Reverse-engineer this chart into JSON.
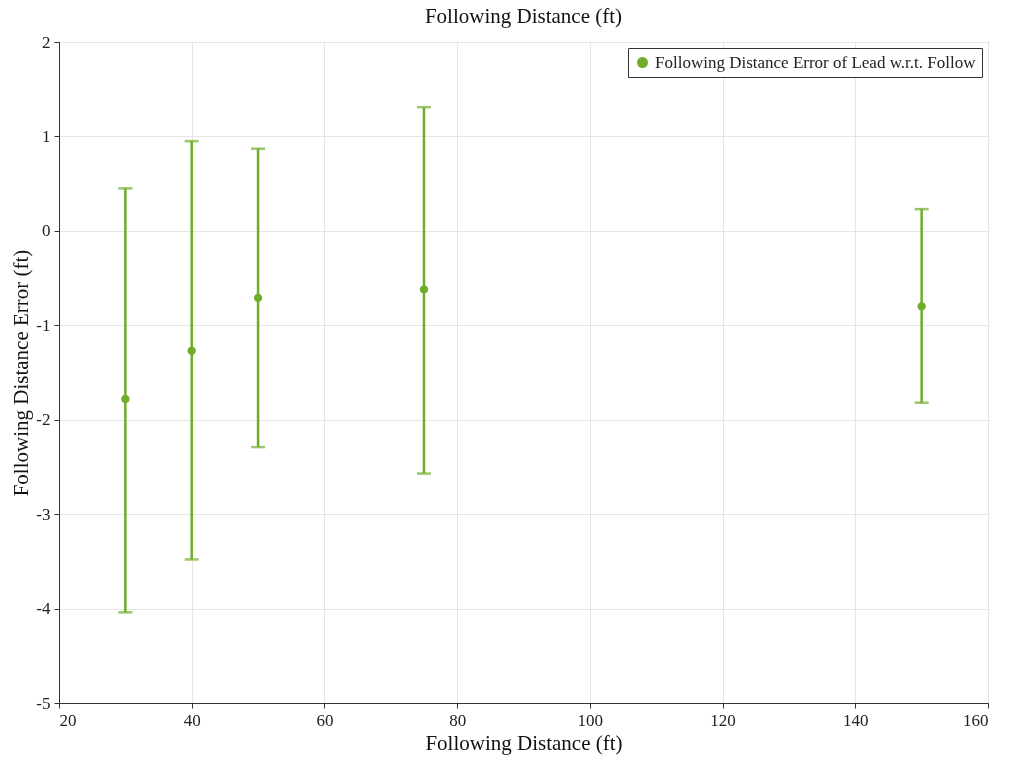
{
  "chart_data": {
    "type": "scatter",
    "title": "Following Distance (ft)",
    "xlabel": "Following Distance (ft)",
    "ylabel": "Following Distance Error (ft)",
    "x": [
      30,
      40,
      50,
      75,
      150
    ],
    "series": [
      {
        "name": "Following Distance Error of Lead w.r.t. Follow",
        "color": "#6fac2a",
        "values": [
          -1.78,
          -1.27,
          -0.71,
          -0.62,
          -0.8
        ],
        "errors": [
          [
            -4.04,
            0.45
          ],
          [
            -3.48,
            0.95
          ],
          [
            -2.29,
            0.87
          ],
          [
            -2.57,
            1.31
          ],
          [
            -1.82,
            0.23
          ]
        ]
      }
    ],
    "xlim": [
      20,
      160
    ],
    "xticks": [
      20,
      40,
      60,
      80,
      100,
      120,
      140,
      160
    ],
    "ylim": [
      -5,
      2
    ],
    "yticks": [
      -5,
      -4,
      -3,
      -2,
      -1,
      0,
      1,
      2
    ],
    "grid": true,
    "legend": "top right",
    "marker": "circle"
  }
}
